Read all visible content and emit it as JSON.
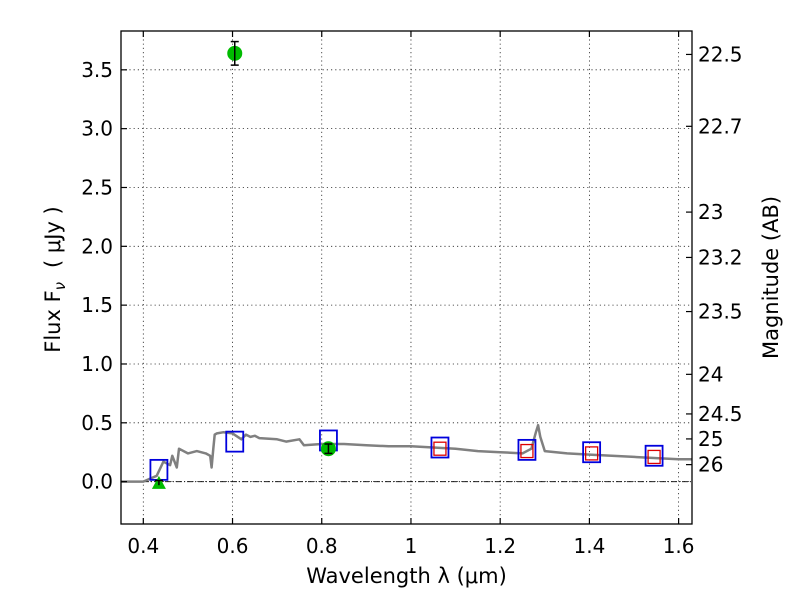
{
  "chart_data": {
    "type": "scatter",
    "title": "",
    "xlabel": "Wavelength  λ (μm)",
    "ylabel": "Flux  F",
    "ylabel_sub": "ν",
    "ylabel_unit": "( μJy )",
    "y2label": "Magnitude (AB)",
    "xlim": [
      0.35,
      1.63
    ],
    "ylim": [
      -0.36,
      3.83
    ],
    "grid": true,
    "x_ticks": [
      {
        "value": 0.4,
        "label": "0.4"
      },
      {
        "value": 0.6,
        "label": "0.6"
      },
      {
        "value": 0.8,
        "label": "0.8"
      },
      {
        "value": 1.0,
        "label": "1"
      },
      {
        "value": 1.2,
        "label": "1.2"
      },
      {
        "value": 1.4,
        "label": "1.4"
      },
      {
        "value": 1.6,
        "label": "1.6"
      }
    ],
    "y_ticks": [
      {
        "value": 0.0,
        "label": "0.0"
      },
      {
        "value": 0.5,
        "label": "0.5"
      },
      {
        "value": 1.0,
        "label": "1.0"
      },
      {
        "value": 1.5,
        "label": "1.5"
      },
      {
        "value": 2.0,
        "label": "2.0"
      },
      {
        "value": 2.5,
        "label": "2.5"
      },
      {
        "value": 3.0,
        "label": "3.0"
      },
      {
        "value": 3.5,
        "label": "3.5"
      }
    ],
    "mag_ticks": [
      {
        "mag": 22.5,
        "label": "22.5"
      },
      {
        "mag": 22.7,
        "label": "22.7"
      },
      {
        "mag": 23,
        "label": "23"
      },
      {
        "mag": 23.2,
        "label": "23.2"
      },
      {
        "mag": 23.5,
        "label": "23.5"
      },
      {
        "mag": 24,
        "label": "24"
      },
      {
        "mag": 24.5,
        "label": "24.5"
      },
      {
        "mag": 25,
        "label": "25"
      },
      {
        "mag": 26,
        "label": "26"
      }
    ],
    "colors": {
      "model": "#808080",
      "observed": "#00bb00",
      "model_phot": "#0000dd",
      "model_phot_inner": "#dd0000",
      "errorbar": "#000000"
    },
    "series": [
      {
        "name": "model spectrum",
        "kind": "line",
        "x": [
          0.35,
          0.4,
          0.43,
          0.445,
          0.46,
          0.465,
          0.475,
          0.48,
          0.5,
          0.52,
          0.54,
          0.55,
          0.553,
          0.557,
          0.56,
          0.565,
          0.58,
          0.6,
          0.62,
          0.63,
          0.64,
          0.65,
          0.66,
          0.7,
          0.72,
          0.75,
          0.76,
          0.8,
          0.85,
          0.9,
          0.95,
          1.0,
          1.05,
          1.1,
          1.15,
          1.2,
          1.25,
          1.27,
          1.28,
          1.285,
          1.29,
          1.3,
          1.35,
          1.4,
          1.45,
          1.5,
          1.55,
          1.6,
          1.63
        ],
        "y": [
          0.0,
          0.0,
          0.05,
          0.17,
          0.14,
          0.22,
          0.12,
          0.28,
          0.24,
          0.26,
          0.24,
          0.22,
          0.12,
          0.28,
          0.4,
          0.41,
          0.42,
          0.41,
          0.36,
          0.4,
          0.38,
          0.39,
          0.37,
          0.36,
          0.34,
          0.36,
          0.31,
          0.32,
          0.32,
          0.31,
          0.3,
          0.3,
          0.29,
          0.28,
          0.26,
          0.25,
          0.24,
          0.28,
          0.42,
          0.48,
          0.38,
          0.26,
          0.24,
          0.23,
          0.22,
          0.21,
          0.2,
          0.19,
          0.19
        ]
      },
      {
        "name": "model photometry",
        "kind": "square",
        "x": [
          0.435,
          0.605,
          0.815,
          1.065,
          1.26,
          1.405,
          1.545
        ],
        "y": [
          0.1,
          0.34,
          0.35,
          0.29,
          0.27,
          0.25,
          0.22
        ]
      },
      {
        "name": "model photometry (inner)",
        "kind": "square_inner",
        "x": [
          1.065,
          1.26,
          1.405,
          1.545
        ],
        "y": [
          0.28,
          0.26,
          0.24,
          0.21
        ]
      },
      {
        "name": "observed photometry",
        "kind": "circle",
        "x": [
          0.605,
          0.815
        ],
        "y": [
          3.64,
          0.28
        ],
        "yerr": [
          0.1,
          0.04
        ]
      },
      {
        "name": "upper limit",
        "kind": "triangle",
        "x": [
          0.435
        ],
        "y": [
          -0.01
        ],
        "yerr": [
          0.02
        ]
      }
    ]
  }
}
